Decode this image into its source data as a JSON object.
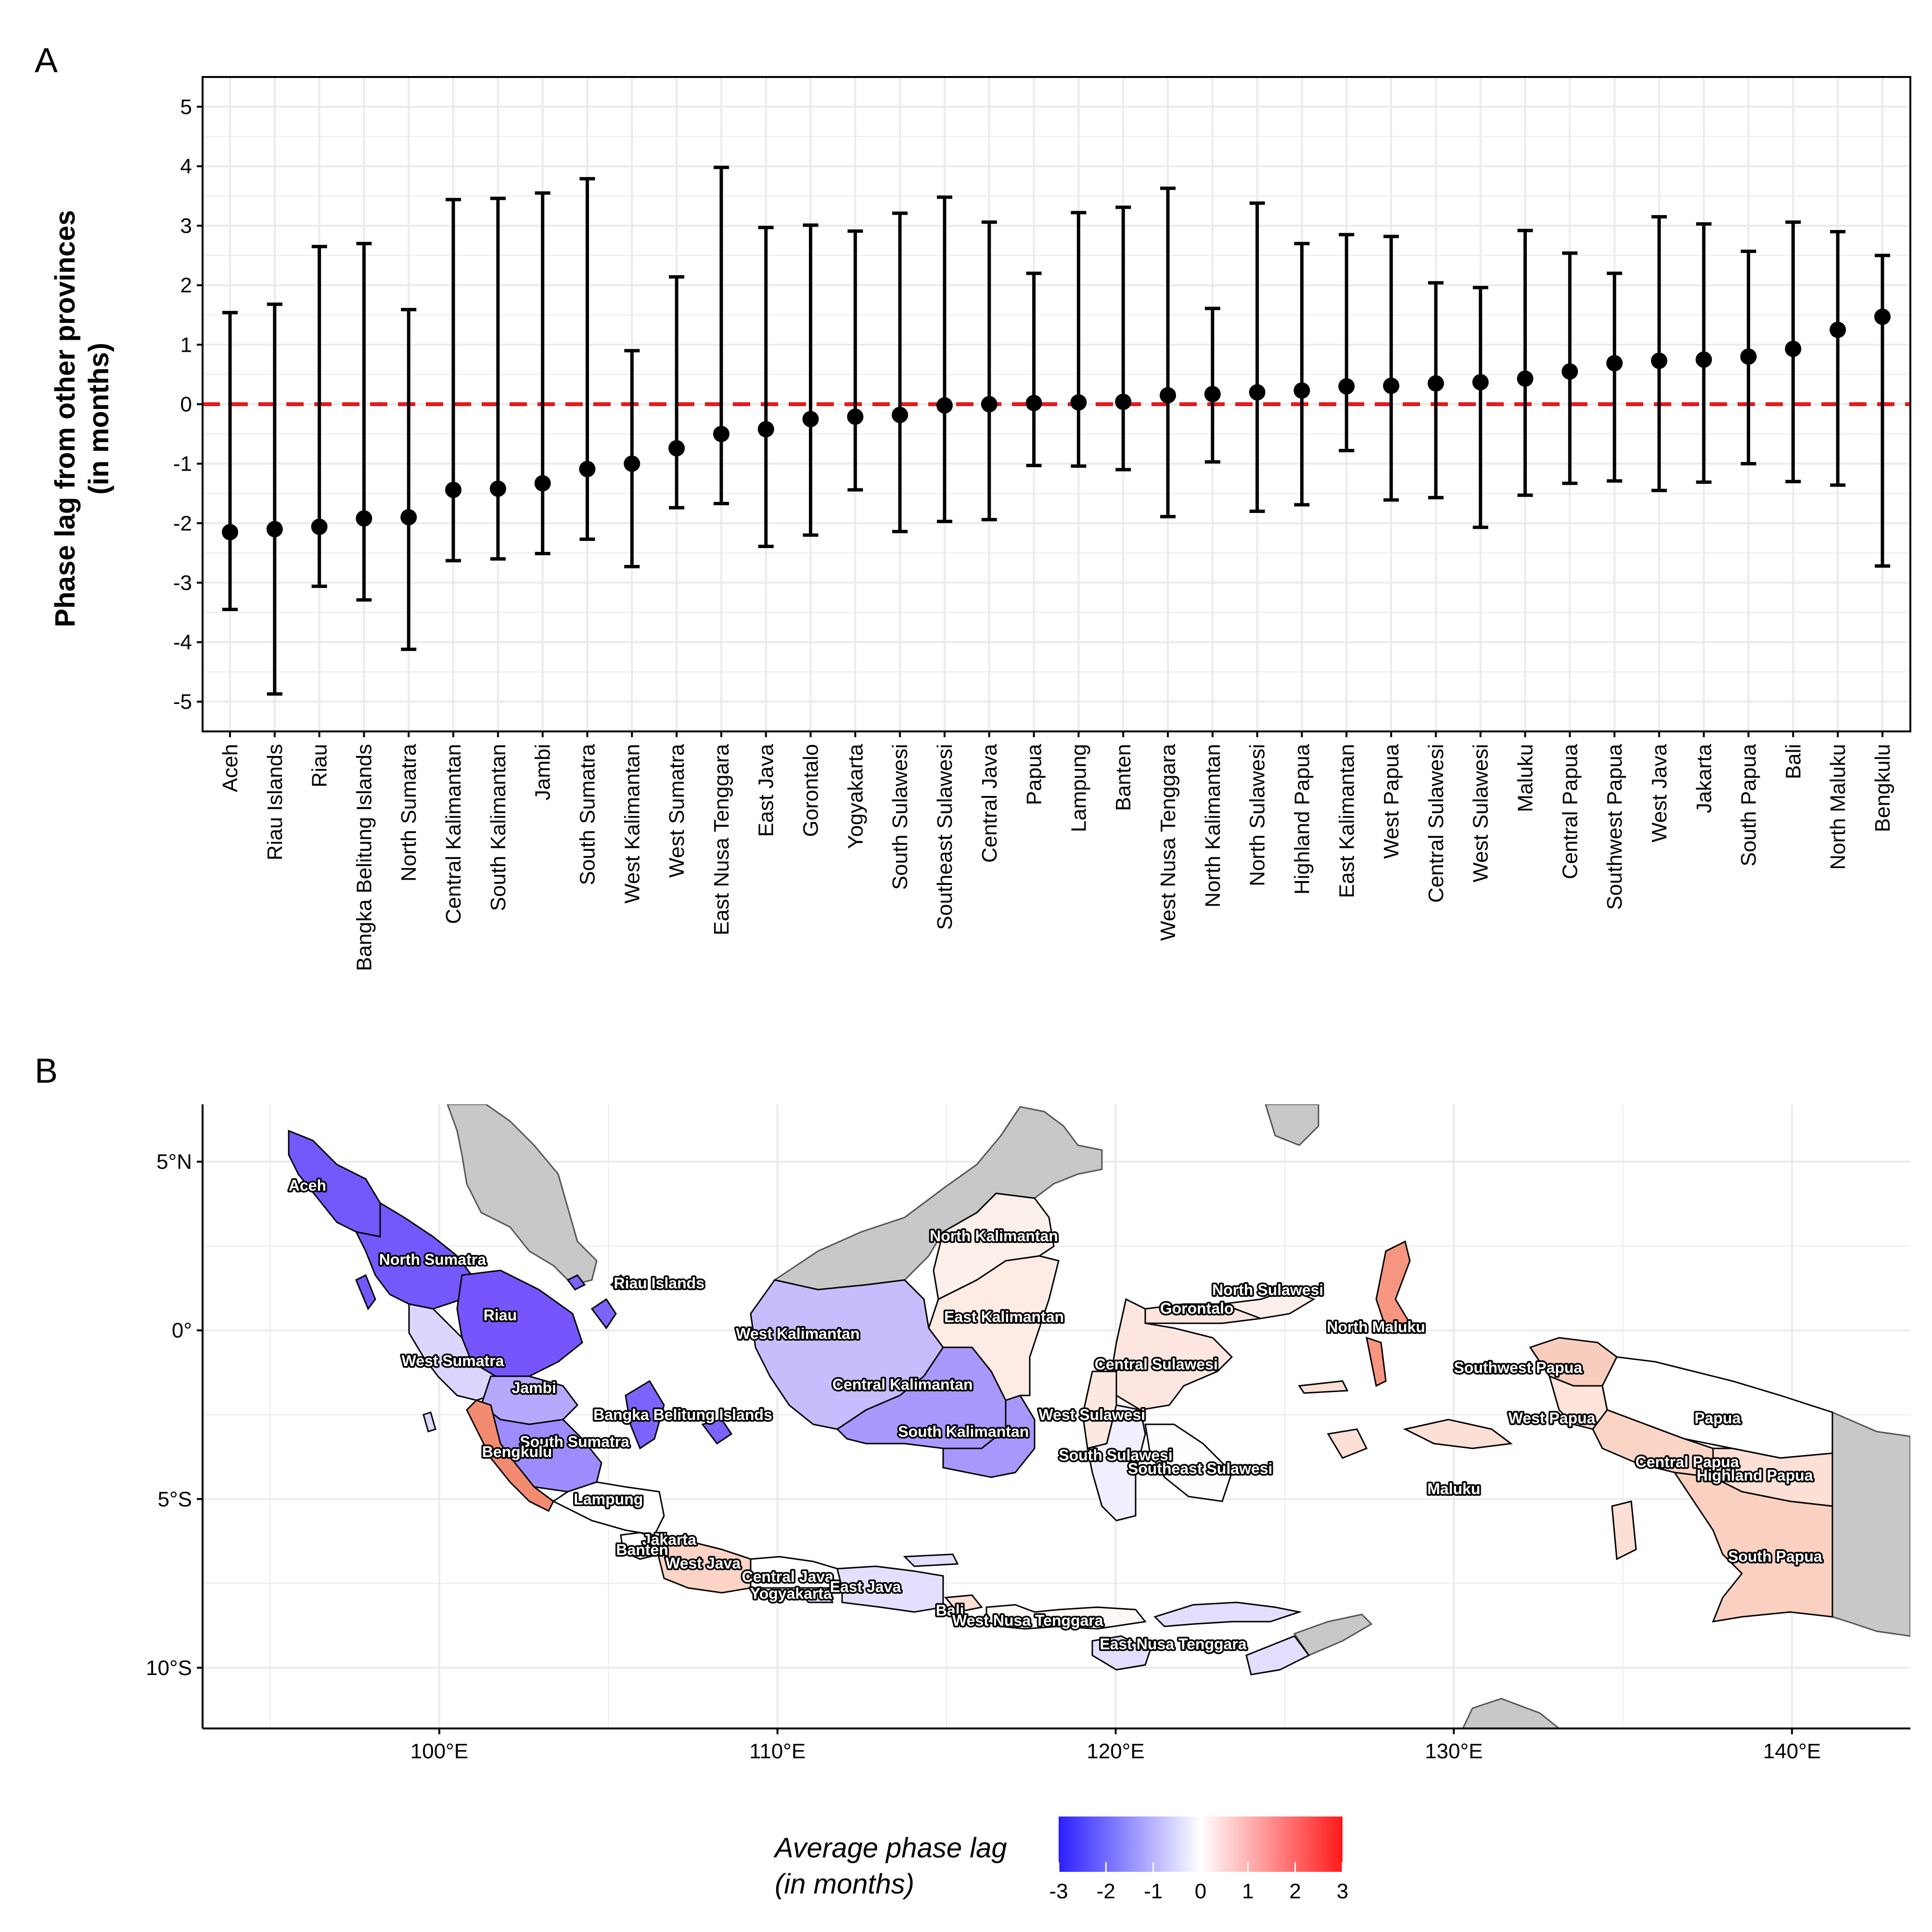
{
  "panels": {
    "a": "A",
    "b": "B"
  },
  "chart_data": [
    {
      "type": "errorbar",
      "ylabel_line1": "Phase lag from other provinces",
      "ylabel_line2": "(in months)",
      "xlabel": "",
      "ylim": [
        -5.5,
        5.5
      ],
      "yticks": [
        -5,
        -4,
        -3,
        -2,
        -1,
        0,
        1,
        2,
        3,
        4,
        5
      ],
      "grid": true,
      "reference_line": {
        "y": 0,
        "color": "#e41a1c",
        "style": "dashed"
      },
      "categories": [
        "Aceh",
        "Riau Islands",
        "Riau",
        "Bangka Belitung Islands",
        "North Sumatra",
        "Central Kalimantan",
        "South Kalimantan",
        "Jambi",
        "South Sumatra",
        "West Kalimantan",
        "West Sumatra",
        "East Nusa Tenggara",
        "East Java",
        "Gorontalo",
        "Yogyakarta",
        "South Sulawesi",
        "Southeast Sulawesi",
        "Central Java",
        "Papua",
        "Lampung",
        "Banten",
        "West Nusa Tenggara",
        "North Kalimantan",
        "North Sulawesi",
        "Highland Papua",
        "East Kalimantan",
        "West Papua",
        "Central Sulawesi",
        "West Sulawesi",
        "Maluku",
        "Central Papua",
        "Southwest Papua",
        "West Java",
        "Jakarta",
        "South Papua",
        "Bali",
        "North Maluku",
        "Bengkulu"
      ],
      "values": [
        -2.15,
        -2.1,
        -2.06,
        -1.92,
        -1.9,
        -1.44,
        -1.42,
        -1.33,
        -1.09,
        -1.0,
        -0.74,
        -0.5,
        -0.42,
        -0.25,
        -0.21,
        -0.18,
        -0.02,
        0.0,
        0.02,
        0.03,
        0.04,
        0.15,
        0.17,
        0.2,
        0.23,
        0.3,
        0.31,
        0.35,
        0.37,
        0.43,
        0.55,
        0.69,
        0.73,
        0.75,
        0.8,
        0.93,
        1.25,
        1.47
      ],
      "lower": [
        -3.45,
        -4.87,
        -3.06,
        -3.29,
        -4.12,
        -2.63,
        -2.6,
        -2.51,
        -2.27,
        -2.73,
        -1.74,
        -1.67,
        -2.39,
        -2.2,
        -1.44,
        -2.14,
        -1.97,
        -1.94,
        -1.03,
        -1.04,
        -1.1,
        -1.89,
        -0.97,
        -1.8,
        -1.69,
        -0.78,
        -1.61,
        -1.57,
        -2.07,
        -1.53,
        -1.33,
        -1.29,
        -1.45,
        -1.31,
        -1.0,
        -1.3,
        -1.36,
        -2.72
      ],
      "upper": [
        1.54,
        1.68,
        2.65,
        2.7,
        1.59,
        3.44,
        3.46,
        3.55,
        3.79,
        0.9,
        2.14,
        3.98,
        2.97,
        3.01,
        2.91,
        3.21,
        3.48,
        3.06,
        2.2,
        3.22,
        3.31,
        3.63,
        1.61,
        3.38,
        2.7,
        2.85,
        2.82,
        2.04,
        1.96,
        2.92,
        2.54,
        2.2,
        3.15,
        3.03,
        2.57,
        3.06,
        2.9,
        2.5
      ],
      "point_color": "#000000"
    },
    {
      "type": "map",
      "xlim": [
        93,
        143.5
      ],
      "ylim": [
        -11.8,
        6.7
      ],
      "xticks": [
        {
          "v": 100,
          "label": "100°E"
        },
        {
          "v": 110,
          "label": "110°E"
        },
        {
          "v": 120,
          "label": "120°E"
        },
        {
          "v": 130,
          "label": "130°E"
        },
        {
          "v": 140,
          "label": "140°E"
        }
      ],
      "yticks": [
        {
          "v": 5,
          "label": "5°N"
        },
        {
          "v": 0,
          "label": "0°"
        },
        {
          "v": -5,
          "label": "5°S"
        },
        {
          "v": -10,
          "label": "10°S"
        }
      ],
      "grid": true,
      "legend": {
        "title_line1": "Average phase lag",
        "title_line2": "(in months)",
        "range": [
          -3,
          3
        ],
        "ticks": [
          "-3",
          "-2",
          "-1",
          "0",
          "1",
          "2",
          "3"
        ],
        "colors": {
          "low": "#2a1fff",
          "mid": "#ffffff",
          "high": "#ff1a1a"
        },
        "placement": "bottom"
      },
      "province_labels": [
        {
          "name": "Aceh",
          "lon": 96.1,
          "lat": 4.3
        },
        {
          "name": "North Sumatra",
          "lon": 99.8,
          "lat": 2.1
        },
        {
          "name": "Riau Islands",
          "lon": 106.5,
          "lat": 1.4
        },
        {
          "name": "Riau",
          "lon": 101.8,
          "lat": 0.45
        },
        {
          "name": "West Sumatra",
          "lon": 100.4,
          "lat": -0.9
        },
        {
          "name": "Jambi",
          "lon": 102.8,
          "lat": -1.7
        },
        {
          "name": "Bangka Belitung Islands",
          "lon": 107.2,
          "lat": -2.5
        },
        {
          "name": "South Sumatra",
          "lon": 104.0,
          "lat": -3.3
        },
        {
          "name": "Bengkulu",
          "lon": 102.3,
          "lat": -3.6
        },
        {
          "name": "Lampung",
          "lon": 105.0,
          "lat": -5.0
        },
        {
          "name": "Jakarta",
          "lon": 106.8,
          "lat": -6.2
        },
        {
          "name": "Banten",
          "lon": 106.0,
          "lat": -6.5
        },
        {
          "name": "West Java",
          "lon": 107.8,
          "lat": -6.9
        },
        {
          "name": "Central Java",
          "lon": 110.3,
          "lat": -7.3
        },
        {
          "name": "Yogyakarta",
          "lon": 110.4,
          "lat": -7.8
        },
        {
          "name": "East Java",
          "lon": 112.6,
          "lat": -7.6
        },
        {
          "name": "Bali",
          "lon": 115.1,
          "lat": -8.3
        },
        {
          "name": "West Nusa Tenggara",
          "lon": 117.4,
          "lat": -8.6
        },
        {
          "name": "East Nusa Tenggara",
          "lon": 121.7,
          "lat": -9.3
        },
        {
          "name": "West Kalimantan",
          "lon": 110.6,
          "lat": -0.1
        },
        {
          "name": "Central Kalimantan",
          "lon": 113.7,
          "lat": -1.6
        },
        {
          "name": "South Kalimantan",
          "lon": 115.5,
          "lat": -3.0
        },
        {
          "name": "East Kalimantan",
          "lon": 116.7,
          "lat": 0.4
        },
        {
          "name": "North Kalimantan",
          "lon": 116.4,
          "lat": 2.8
        },
        {
          "name": "North Sulawesi",
          "lon": 124.5,
          "lat": 1.2
        },
        {
          "name": "Gorontalo",
          "lon": 122.4,
          "lat": 0.65
        },
        {
          "name": "Central Sulawesi",
          "lon": 121.2,
          "lat": -1.0
        },
        {
          "name": "West Sulawesi",
          "lon": 119.3,
          "lat": -2.5
        },
        {
          "name": "South Sulawesi",
          "lon": 120.0,
          "lat": -3.7
        },
        {
          "name": "Southeast Sulawesi",
          "lon": 122.5,
          "lat": -4.1
        },
        {
          "name": "North Maluku",
          "lon": 127.7,
          "lat": 0.1
        },
        {
          "name": "Maluku",
          "lon": 130.0,
          "lat": -4.7
        },
        {
          "name": "Southwest Papua",
          "lon": 131.9,
          "lat": -1.1
        },
        {
          "name": "West Papua",
          "lon": 132.9,
          "lat": -2.6
        },
        {
          "name": "Papua",
          "lon": 137.8,
          "lat": -2.6
        },
        {
          "name": "Central Papua",
          "lon": 136.9,
          "lat": -3.9
        },
        {
          "name": "Highland Papua",
          "lon": 138.9,
          "lat": -4.3
        },
        {
          "name": "South Papua",
          "lon": 139.5,
          "lat": -6.7
        }
      ]
    }
  ]
}
